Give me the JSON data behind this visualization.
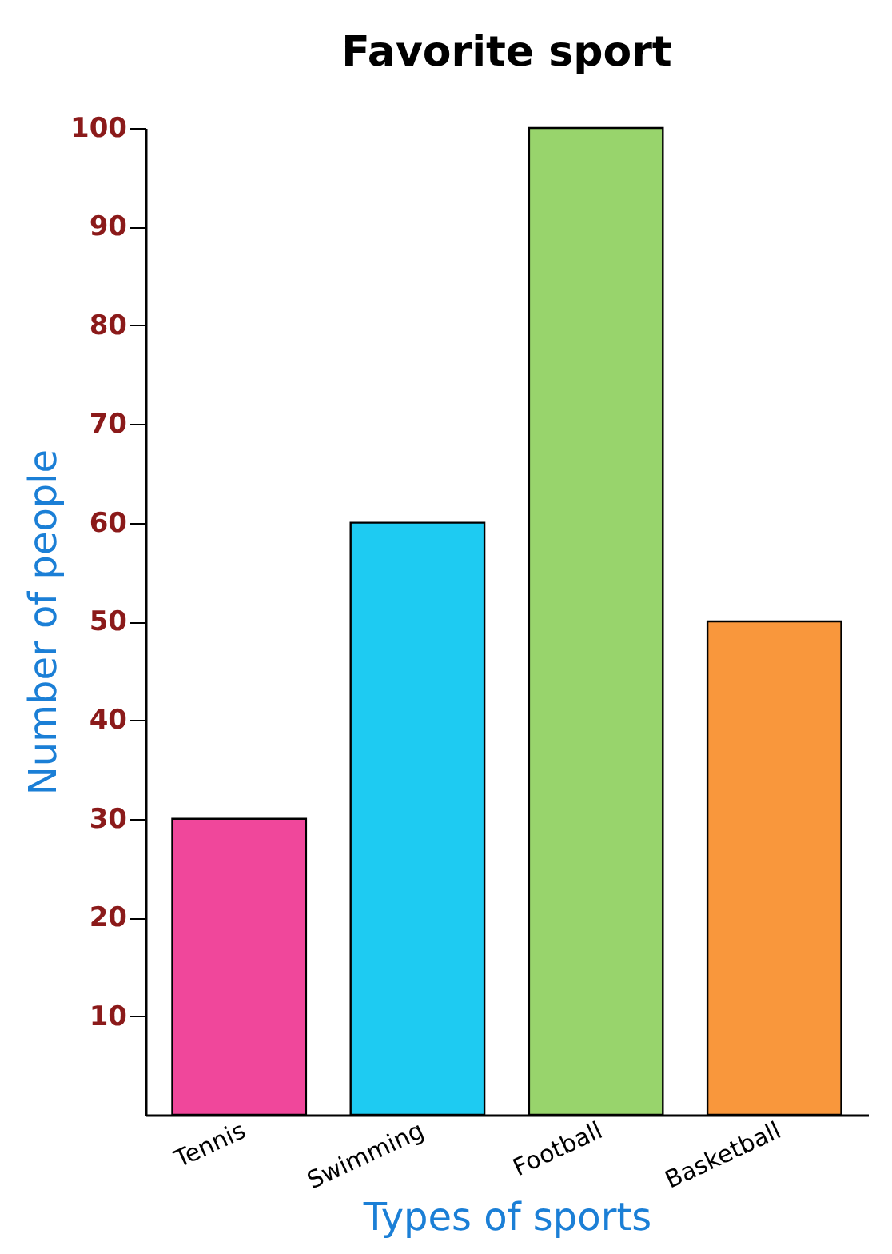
{
  "chart_data": {
    "type": "bar",
    "title": "Favorite sport",
    "xlabel": "Types of sports",
    "ylabel": "Number of people",
    "categories": [
      "Tennis",
      "Swimming",
      "Football",
      "Basketball"
    ],
    "values": [
      30,
      60,
      100,
      50
    ],
    "colors": [
      "#f0479b",
      "#1ecbf2",
      "#98d46c",
      "#f9973c"
    ],
    "ylim": [
      0,
      100
    ],
    "yticks": [
      10,
      20,
      30,
      40,
      50,
      60,
      70,
      80,
      90,
      100
    ],
    "grid": false
  }
}
